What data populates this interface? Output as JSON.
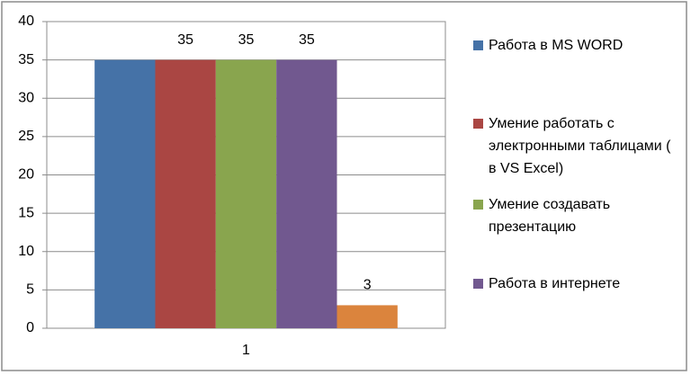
{
  "chart_data": {
    "type": "bar",
    "categories": [
      "1"
    ],
    "series": [
      {
        "name": "Работа в MS WORD",
        "color": "#4572a7",
        "values": [
          35
        ],
        "data_labels": false
      },
      {
        "name": "Умение работать с электронными таблицами ( в VS Excel)",
        "color": "#aa4643",
        "values": [
          35
        ],
        "data_labels": true
      },
      {
        "name": "Умение создавать презентацию",
        "color": "#89a54e",
        "values": [
          35
        ],
        "data_labels": true
      },
      {
        "name": "Работа в интернете",
        "color": "#71588f",
        "values": [
          35
        ],
        "data_labels": true
      },
      {
        "color": "#db843d",
        "values": [
          3
        ],
        "data_labels": true
      }
    ],
    "ylim": [
      0,
      40
    ],
    "yticks": [
      0,
      5,
      10,
      15,
      20,
      25,
      30,
      35,
      40
    ],
    "grid": true,
    "legend": "right"
  }
}
